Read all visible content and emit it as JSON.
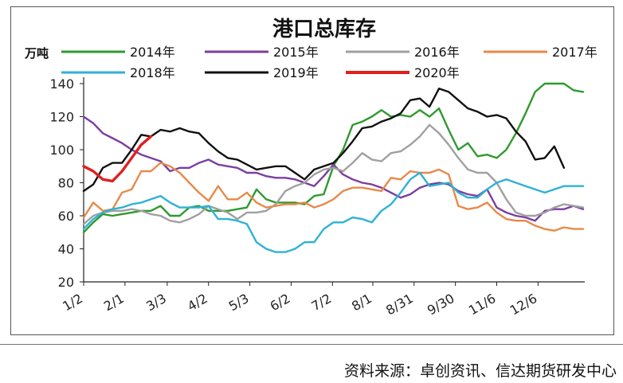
{
  "source_note": "资料来源：卓创资讯、信达期货研发中心",
  "chart_data": {
    "type": "line",
    "title": "港口总库存",
    "ylabel": "万吨",
    "xlabel": "",
    "ylim": [
      20,
      140
    ],
    "y_ticks": [
      20,
      40,
      60,
      80,
      100,
      120,
      140
    ],
    "x_week_range": [
      0,
      52
    ],
    "x_ticks": [
      {
        "label": "1/2",
        "week": 0
      },
      {
        "label": "2/1",
        "week": 4.3
      },
      {
        "label": "3/3",
        "week": 8.7
      },
      {
        "label": "4/2",
        "week": 13.0
      },
      {
        "label": "5/3",
        "week": 17.3
      },
      {
        "label": "6/2",
        "week": 21.6
      },
      {
        "label": "7/2",
        "week": 25.9
      },
      {
        "label": "8/1",
        "week": 30.1
      },
      {
        "label": "8/31",
        "week": 34.4
      },
      {
        "label": "9/30",
        "week": 38.7
      },
      {
        "label": "11/6",
        "week": 43.0
      },
      {
        "label": "12/6",
        "week": 47.3
      }
    ],
    "grid": false,
    "legend_position": "top",
    "series": [
      {
        "name": "2014年",
        "color": "#2e9a2e",
        "points": [
          [
            0,
            50
          ],
          [
            1,
            56
          ],
          [
            2,
            61
          ],
          [
            3,
            60
          ],
          [
            4,
            61
          ],
          [
            5,
            62
          ],
          [
            6,
            63
          ],
          [
            7,
            63
          ],
          [
            8,
            66
          ],
          [
            9,
            60
          ],
          [
            10,
            60
          ],
          [
            11,
            65
          ],
          [
            12,
            66
          ],
          [
            13,
            63
          ],
          [
            14,
            63
          ],
          [
            15,
            63
          ],
          [
            16,
            64
          ],
          [
            17,
            65
          ],
          [
            18,
            76
          ],
          [
            19,
            70
          ],
          [
            20,
            68
          ],
          [
            21,
            68
          ],
          [
            22,
            68
          ],
          [
            23,
            67
          ],
          [
            24,
            72
          ],
          [
            25,
            73
          ],
          [
            26,
            90
          ],
          [
            27,
            100
          ],
          [
            28,
            115
          ],
          [
            29,
            117
          ],
          [
            30,
            120
          ],
          [
            31,
            124
          ],
          [
            32,
            120
          ],
          [
            33,
            121
          ],
          [
            34,
            120
          ],
          [
            35,
            124
          ],
          [
            36,
            120
          ],
          [
            37,
            125
          ],
          [
            38,
            112
          ],
          [
            39,
            100
          ],
          [
            40,
            104
          ],
          [
            41,
            96
          ],
          [
            42,
            97
          ],
          [
            43,
            95
          ],
          [
            44,
            100
          ],
          [
            45,
            110
          ],
          [
            46,
            122
          ],
          [
            47,
            135
          ],
          [
            48,
            140
          ],
          [
            49,
            140
          ],
          [
            50,
            140
          ],
          [
            51,
            136
          ],
          [
            52,
            135
          ]
        ]
      },
      {
        "name": "2015年",
        "color": "#7b3fa0",
        "points": [
          [
            0,
            120
          ],
          [
            1,
            116
          ],
          [
            2,
            110
          ],
          [
            3,
            107
          ],
          [
            4,
            104
          ],
          [
            5,
            100
          ],
          [
            6,
            97
          ],
          [
            7,
            95
          ],
          [
            8,
            93
          ],
          [
            9,
            87
          ],
          [
            10,
            89
          ],
          [
            11,
            89
          ],
          [
            12,
            92
          ],
          [
            13,
            94
          ],
          [
            14,
            91
          ],
          [
            15,
            90
          ],
          [
            16,
            89
          ],
          [
            17,
            86
          ],
          [
            18,
            86
          ],
          [
            19,
            84
          ],
          [
            20,
            83
          ],
          [
            21,
            83
          ],
          [
            22,
            82
          ],
          [
            23,
            80
          ],
          [
            24,
            78
          ],
          [
            25,
            84
          ],
          [
            26,
            91
          ],
          [
            27,
            85
          ],
          [
            28,
            82
          ],
          [
            29,
            80
          ],
          [
            30,
            79
          ],
          [
            31,
            77
          ],
          [
            32,
            74
          ],
          [
            33,
            71
          ],
          [
            34,
            73
          ],
          [
            35,
            77
          ],
          [
            36,
            79
          ],
          [
            37,
            80
          ],
          [
            38,
            79
          ],
          [
            39,
            75
          ],
          [
            40,
            73
          ],
          [
            41,
            72
          ],
          [
            42,
            76
          ],
          [
            43,
            65
          ],
          [
            44,
            62
          ],
          [
            45,
            60
          ],
          [
            46,
            59
          ],
          [
            47,
            57
          ],
          [
            48,
            63
          ],
          [
            49,
            64
          ],
          [
            50,
            64
          ],
          [
            51,
            66
          ],
          [
            52,
            64
          ]
        ]
      },
      {
        "name": "2016年",
        "color": "#a0a0a0",
        "points": [
          [
            0,
            55
          ],
          [
            1,
            60
          ],
          [
            2,
            62
          ],
          [
            3,
            63
          ],
          [
            4,
            63
          ],
          [
            5,
            64
          ],
          [
            6,
            63
          ],
          [
            7,
            61
          ],
          [
            8,
            60
          ],
          [
            9,
            57
          ],
          [
            10,
            56
          ],
          [
            11,
            58
          ],
          [
            12,
            61
          ],
          [
            13,
            66
          ],
          [
            14,
            64
          ],
          [
            15,
            62
          ],
          [
            16,
            58
          ],
          [
            17,
            62
          ],
          [
            18,
            62
          ],
          [
            19,
            63
          ],
          [
            20,
            67
          ],
          [
            21,
            75
          ],
          [
            22,
            78
          ],
          [
            23,
            80
          ],
          [
            24,
            85
          ],
          [
            25,
            88
          ],
          [
            26,
            89
          ],
          [
            27,
            87
          ],
          [
            28,
            92
          ],
          [
            29,
            98
          ],
          [
            30,
            94
          ],
          [
            31,
            93
          ],
          [
            32,
            98
          ],
          [
            33,
            99
          ],
          [
            34,
            103
          ],
          [
            35,
            108
          ],
          [
            36,
            115
          ],
          [
            37,
            110
          ],
          [
            38,
            103
          ],
          [
            39,
            95
          ],
          [
            40,
            88
          ],
          [
            41,
            86
          ],
          [
            42,
            86
          ],
          [
            43,
            80
          ],
          [
            44,
            70
          ],
          [
            45,
            62
          ],
          [
            46,
            60
          ],
          [
            47,
            60
          ],
          [
            48,
            62
          ],
          [
            49,
            65
          ],
          [
            50,
            67
          ],
          [
            51,
            66
          ],
          [
            52,
            65
          ]
        ]
      },
      {
        "name": "2017年",
        "color": "#e8894a",
        "points": [
          [
            0,
            59
          ],
          [
            1,
            68
          ],
          [
            2,
            63
          ],
          [
            3,
            64
          ],
          [
            4,
            74
          ],
          [
            5,
            76
          ],
          [
            6,
            87
          ],
          [
            7,
            87
          ],
          [
            8,
            92
          ],
          [
            9,
            90
          ],
          [
            10,
            86
          ],
          [
            11,
            80
          ],
          [
            12,
            74
          ],
          [
            13,
            69
          ],
          [
            14,
            78
          ],
          [
            15,
            70
          ],
          [
            16,
            70
          ],
          [
            17,
            74
          ],
          [
            18,
            68
          ],
          [
            19,
            65
          ],
          [
            20,
            66
          ],
          [
            21,
            67
          ],
          [
            22,
            67
          ],
          [
            23,
            68
          ],
          [
            24,
            65
          ],
          [
            25,
            67
          ],
          [
            26,
            70
          ],
          [
            27,
            75
          ],
          [
            28,
            77
          ],
          [
            29,
            77
          ],
          [
            30,
            76
          ],
          [
            31,
            75
          ],
          [
            32,
            83
          ],
          [
            33,
            82
          ],
          [
            34,
            87
          ],
          [
            35,
            86
          ],
          [
            36,
            86
          ],
          [
            37,
            88
          ],
          [
            38,
            85
          ],
          [
            39,
            66
          ],
          [
            40,
            64
          ],
          [
            41,
            65
          ],
          [
            42,
            68
          ],
          [
            43,
            62
          ],
          [
            44,
            58
          ],
          [
            45,
            57
          ],
          [
            46,
            57
          ],
          [
            47,
            54
          ],
          [
            48,
            52
          ],
          [
            49,
            51
          ],
          [
            50,
            53
          ],
          [
            51,
            52
          ],
          [
            52,
            52
          ]
        ]
      },
      {
        "name": "2018年",
        "color": "#2eb2d6",
        "points": [
          [
            0,
            52
          ],
          [
            1,
            58
          ],
          [
            2,
            62
          ],
          [
            3,
            64
          ],
          [
            4,
            65
          ],
          [
            5,
            67
          ],
          [
            6,
            68
          ],
          [
            7,
            70
          ],
          [
            8,
            72
          ],
          [
            9,
            68
          ],
          [
            10,
            65
          ],
          [
            11,
            65
          ],
          [
            12,
            65
          ],
          [
            13,
            66
          ],
          [
            14,
            58
          ],
          [
            15,
            58
          ],
          [
            16,
            57
          ],
          [
            17,
            55
          ],
          [
            18,
            44
          ],
          [
            19,
            40
          ],
          [
            20,
            38
          ],
          [
            21,
            38
          ],
          [
            22,
            40
          ],
          [
            23,
            44
          ],
          [
            24,
            44
          ],
          [
            25,
            52
          ],
          [
            26,
            56
          ],
          [
            27,
            56
          ],
          [
            28,
            59
          ],
          [
            29,
            58
          ],
          [
            30,
            56
          ],
          [
            31,
            63
          ],
          [
            32,
            67
          ],
          [
            33,
            74
          ],
          [
            34,
            82
          ],
          [
            35,
            86
          ],
          [
            36,
            78
          ],
          [
            37,
            79
          ],
          [
            38,
            80
          ],
          [
            39,
            74
          ],
          [
            40,
            71
          ],
          [
            41,
            71
          ],
          [
            42,
            76
          ],
          [
            43,
            80
          ],
          [
            44,
            82
          ],
          [
            45,
            80
          ],
          [
            46,
            78
          ],
          [
            47,
            76
          ],
          [
            48,
            74
          ],
          [
            49,
            76
          ],
          [
            50,
            78
          ],
          [
            51,
            78
          ],
          [
            52,
            78
          ]
        ]
      },
      {
        "name": "2019年",
        "color": "#111111",
        "points": [
          [
            0,
            75
          ],
          [
            1,
            79
          ],
          [
            2,
            89
          ],
          [
            3,
            92
          ],
          [
            4,
            92
          ],
          [
            5,
            100
          ],
          [
            6,
            109
          ],
          [
            7,
            108
          ],
          [
            8,
            112
          ],
          [
            9,
            111
          ],
          [
            10,
            113
          ],
          [
            11,
            111
          ],
          [
            12,
            110
          ],
          [
            13,
            104
          ],
          [
            14,
            99
          ],
          [
            15,
            95
          ],
          [
            16,
            94
          ],
          [
            17,
            91
          ],
          [
            18,
            88
          ],
          [
            19,
            89
          ],
          [
            20,
            90
          ],
          [
            21,
            90
          ],
          [
            22,
            86
          ],
          [
            23,
            82
          ],
          [
            24,
            88
          ],
          [
            25,
            90
          ],
          [
            26,
            92
          ],
          [
            27,
            98
          ],
          [
            28,
            105
          ],
          [
            29,
            113
          ],
          [
            30,
            114
          ],
          [
            31,
            117
          ],
          [
            32,
            119
          ],
          [
            33,
            122
          ],
          [
            34,
            130
          ],
          [
            35,
            131
          ],
          [
            36,
            126
          ],
          [
            37,
            137
          ],
          [
            38,
            135
          ],
          [
            39,
            130
          ],
          [
            40,
            125
          ],
          [
            41,
            123
          ],
          [
            42,
            120
          ],
          [
            43,
            121
          ],
          [
            44,
            119
          ],
          [
            45,
            111
          ],
          [
            46,
            105
          ],
          [
            47,
            94
          ],
          [
            48,
            95
          ],
          [
            49,
            102
          ],
          [
            50,
            89
          ]
        ]
      },
      {
        "name": "2020年",
        "color": "#e02020",
        "points": [
          [
            0,
            90
          ],
          [
            1,
            87
          ],
          [
            2,
            82
          ],
          [
            3,
            81
          ],
          [
            4,
            87
          ],
          [
            5,
            95
          ],
          [
            6,
            103
          ],
          [
            7,
            108
          ]
        ]
      }
    ]
  }
}
